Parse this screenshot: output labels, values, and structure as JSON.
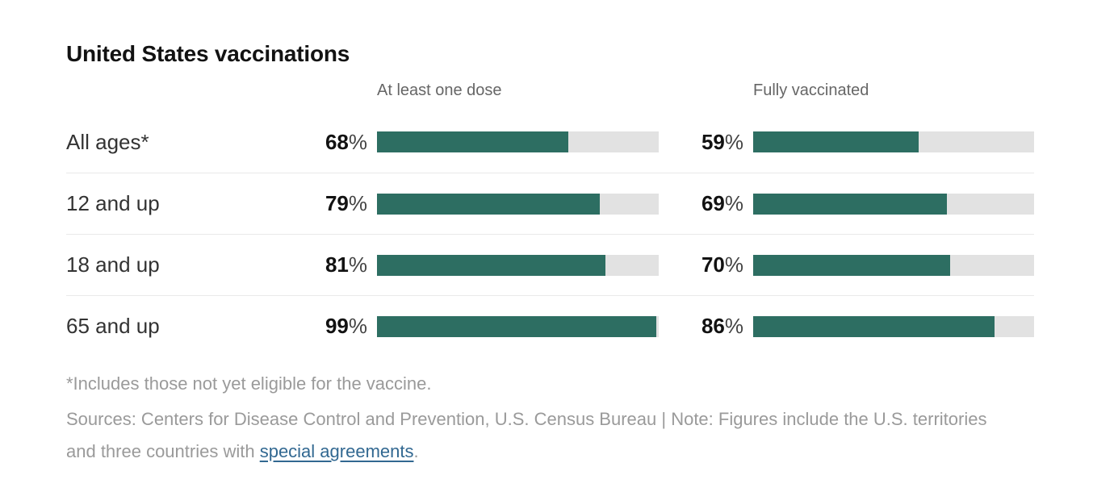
{
  "title": "United States vaccinations",
  "column_headers": [
    "At least one dose",
    "Fully vaccinated"
  ],
  "percent_sign": "%",
  "footnote": "*Includes those not yet eligible for the vaccine.",
  "sources": {
    "prefix": "Sources: Centers for Disease Control and Prevention, U.S. Census Bureau | Note: Figures include the U.S. territories and three countries with ",
    "link_text": "special agreements",
    "suffix": "."
  },
  "colors": {
    "bar_fill": "#2d6e62",
    "bar_track": "#e2e2e2",
    "link": "#326891"
  },
  "chart_data": {
    "type": "bar",
    "title": "United States vaccinations",
    "categories": [
      "All ages*",
      "12 and up",
      "18 and up",
      "65 and up"
    ],
    "series": [
      {
        "name": "At least one dose",
        "values": [
          68,
          79,
          81,
          99
        ]
      },
      {
        "name": "Fully vaccinated",
        "values": [
          59,
          69,
          70,
          86
        ]
      }
    ],
    "unit": "%",
    "value_range": [
      0,
      100
    ],
    "orientation": "horizontal",
    "grid": false,
    "legend_position": "column-headers-top"
  }
}
